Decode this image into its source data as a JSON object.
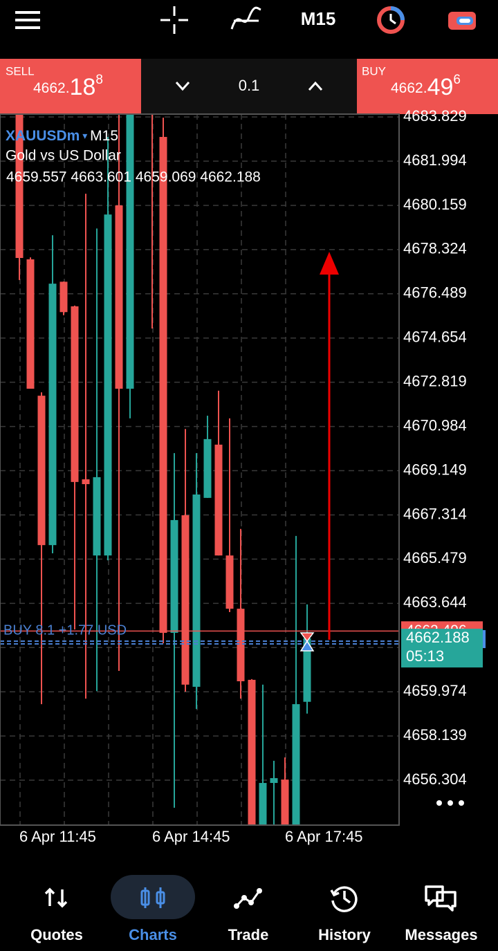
{
  "toolbar": {
    "timeframe": "M15"
  },
  "trade_panel": {
    "sell": {
      "label": "SELL",
      "price_head": "4662.",
      "price_big": "18",
      "price_sup": "8"
    },
    "volume": "0.1",
    "buy": {
      "label": "BUY",
      "price_head": "4662.",
      "price_big": "49",
      "price_sup": "6"
    }
  },
  "chart_data": {
    "type": "candlestick",
    "symbol": "XAUUSDm",
    "timeframe": "M15",
    "description": "Gold vs US Dollar",
    "ohlc_text": "4659.557 4663.601 4659.069 4662.188",
    "categories": [
      "6 Apr 11:45",
      null,
      null,
      null,
      null,
      null,
      null,
      null,
      null,
      null,
      null,
      null,
      "6 Apr 14:45",
      null,
      null,
      null,
      null,
      null,
      null,
      null,
      null,
      null,
      null,
      null,
      "6 Apr 17:45",
      null,
      null
    ],
    "open": [
      4684.5,
      4677.92,
      4672.26,
      4666.06,
      4676.99,
      4675.97,
      4668.79,
      4665.63,
      4665.63,
      4680.16,
      4672.55,
      4690.0,
      4689.0,
      4683.0,
      4662.42,
      4667.3,
      4660.18,
      4668.02,
      4670.23,
      4665.63,
      4663.42,
      4660.47,
      4654.0,
      4656.19,
      4656.33,
      4654.3,
      4659.557
    ],
    "high": [
      4685.0,
      4678.0,
      4672.4,
      4678.92,
      4677.0,
      4676.0,
      4680.64,
      4679.2,
      4683.0,
      4684.0,
      4685.0,
      4691.0,
      4690.0,
      4683.8,
      4669.88,
      4670.88,
      4669.88,
      4671.43,
      4672.47,
      4671.32,
      4666.73,
      4660.5,
      4660.27,
      4657.11,
      4657.25,
      4666.44,
      4663.601
    ],
    "low": [
      4677.06,
      4672.55,
      4659.46,
      4665.72,
      4675.6,
      4662.56,
      4659.69,
      4660.0,
      4665.43,
      4660.84,
      4671.32,
      4685.0,
      4675.05,
      4661.99,
      4655.16,
      4659.98,
      4659.26,
      4668.02,
      4665.63,
      4663.28,
      4659.69,
      4653.5,
      4653.5,
      4654.2,
      4653.8,
      4653.9,
      4659.069
    ],
    "close": [
      4677.976,
      4672.55,
      4666.06,
      4676.91,
      4675.73,
      4668.68,
      4668.59,
      4668.88,
      4679.78,
      4672.55,
      4684.5,
      4686.0,
      4684.5,
      4662.42,
      4667.1,
      4660.27,
      4668.16,
      4670.46,
      4665.63,
      4663.42,
      4660.41,
      4654.0,
      4656.19,
      4656.39,
      4654.3,
      4659.46,
      4662.188
    ],
    "up_color": "#26a69a",
    "down_color": "#ef5350",
    "ylim": [
      4654.44,
      4683.946
    ],
    "yticks": [
      4683.829,
      4681.994,
      4680.159,
      4678.324,
      4676.489,
      4674.654,
      4672.819,
      4670.984,
      4669.149,
      4667.314,
      4665.479,
      4663.644,
      4661.809,
      4659.974,
      4658.139,
      4656.304
    ],
    "grid": true,
    "ask": 4662.496,
    "bid": 4662.188,
    "bid_timer": "05:13",
    "position_label": "BUY 8.1 +1.77 USD"
  },
  "nav": {
    "items": [
      "Quotes",
      "Charts",
      "Trade",
      "History",
      "Messages"
    ],
    "active": 1
  }
}
